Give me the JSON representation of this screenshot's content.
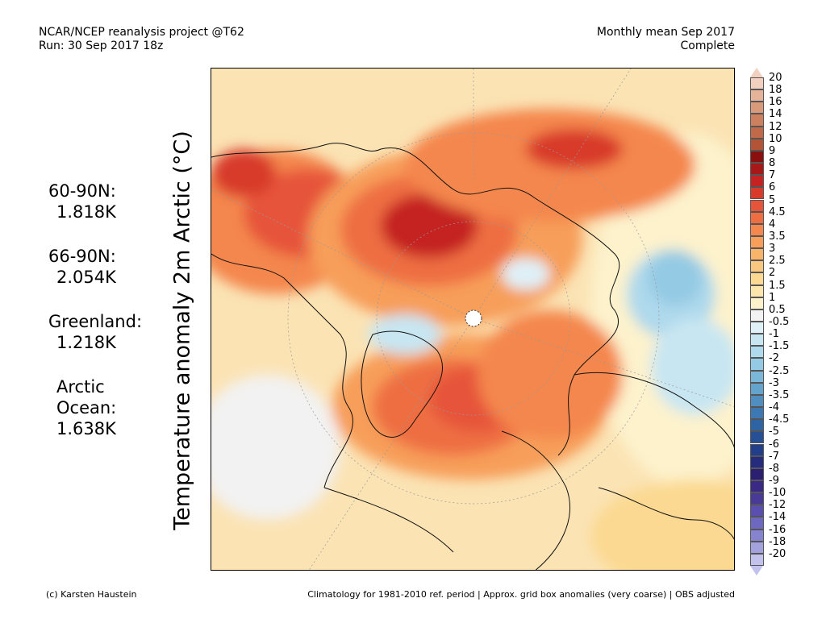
{
  "header": {
    "project": "NCAR/NCEP reanalysis project @T62",
    "run": "Run: 30 Sep 2017 18z",
    "period": "Monthly mean Sep 2017",
    "status": "Complete"
  },
  "stats": [
    {
      "label": "60-90N:",
      "value": "1.818K"
    },
    {
      "label": "66-90N:",
      "value": "2.054K"
    },
    {
      "label": "Greenland:",
      "value": "1.218K"
    },
    {
      "label": "Arctic",
      "label2": "Ocean:",
      "value": "1.638K"
    }
  ],
  "map": {
    "ylabel": "Temperature anomaly 2m Arctic (°C)"
  },
  "colorbar": {
    "labels": [
      "20",
      "18",
      "16",
      "14",
      "12",
      "10",
      "9",
      "8",
      "7",
      "6",
      "5",
      "4.5",
      "4",
      "3.5",
      "3",
      "2.5",
      "2",
      "1.5",
      "1",
      "0.5",
      "-0.5",
      "-1",
      "-1.5",
      "-2",
      "-2.5",
      "-3",
      "-3.5",
      "-4",
      "-4.5",
      "-5",
      "-6",
      "-7",
      "-8",
      "-9",
      "-10",
      "-12",
      "-14",
      "-16",
      "-18",
      "-20"
    ],
    "colors": [
      "#f2d0c0",
      "#e5b39a",
      "#d99a7c",
      "#cc8060",
      "#c06a4a",
      "#b35436",
      "#8a0f0f",
      "#a81818",
      "#c52323",
      "#d83a2c",
      "#e6553a",
      "#ee6e42",
      "#f4874d",
      "#f79e5a",
      "#f8b46a",
      "#f9c77f",
      "#fbd992",
      "#fce6ab",
      "#fdf2cc",
      "#f2f2f2",
      "#dff0f7",
      "#c8e6f2",
      "#afd9ec",
      "#94cae4",
      "#7bb7d8",
      "#64a3cc",
      "#4f8ebf",
      "#3d78b2",
      "#2e63a4",
      "#264f96",
      "#233e8a",
      "#262c7d",
      "#2a1f70",
      "#3a2a85",
      "#4a3a98",
      "#5a4fae",
      "#6e68c0",
      "#8683cf",
      "#a3a2dd",
      "#c2c2ec"
    ]
  },
  "footer": {
    "credit": "(c) Karsten Haustein",
    "note": "Climatology for 1981-2010 ref. period | Approx. grid box anomalies (very coarse) | OBS adjusted"
  }
}
